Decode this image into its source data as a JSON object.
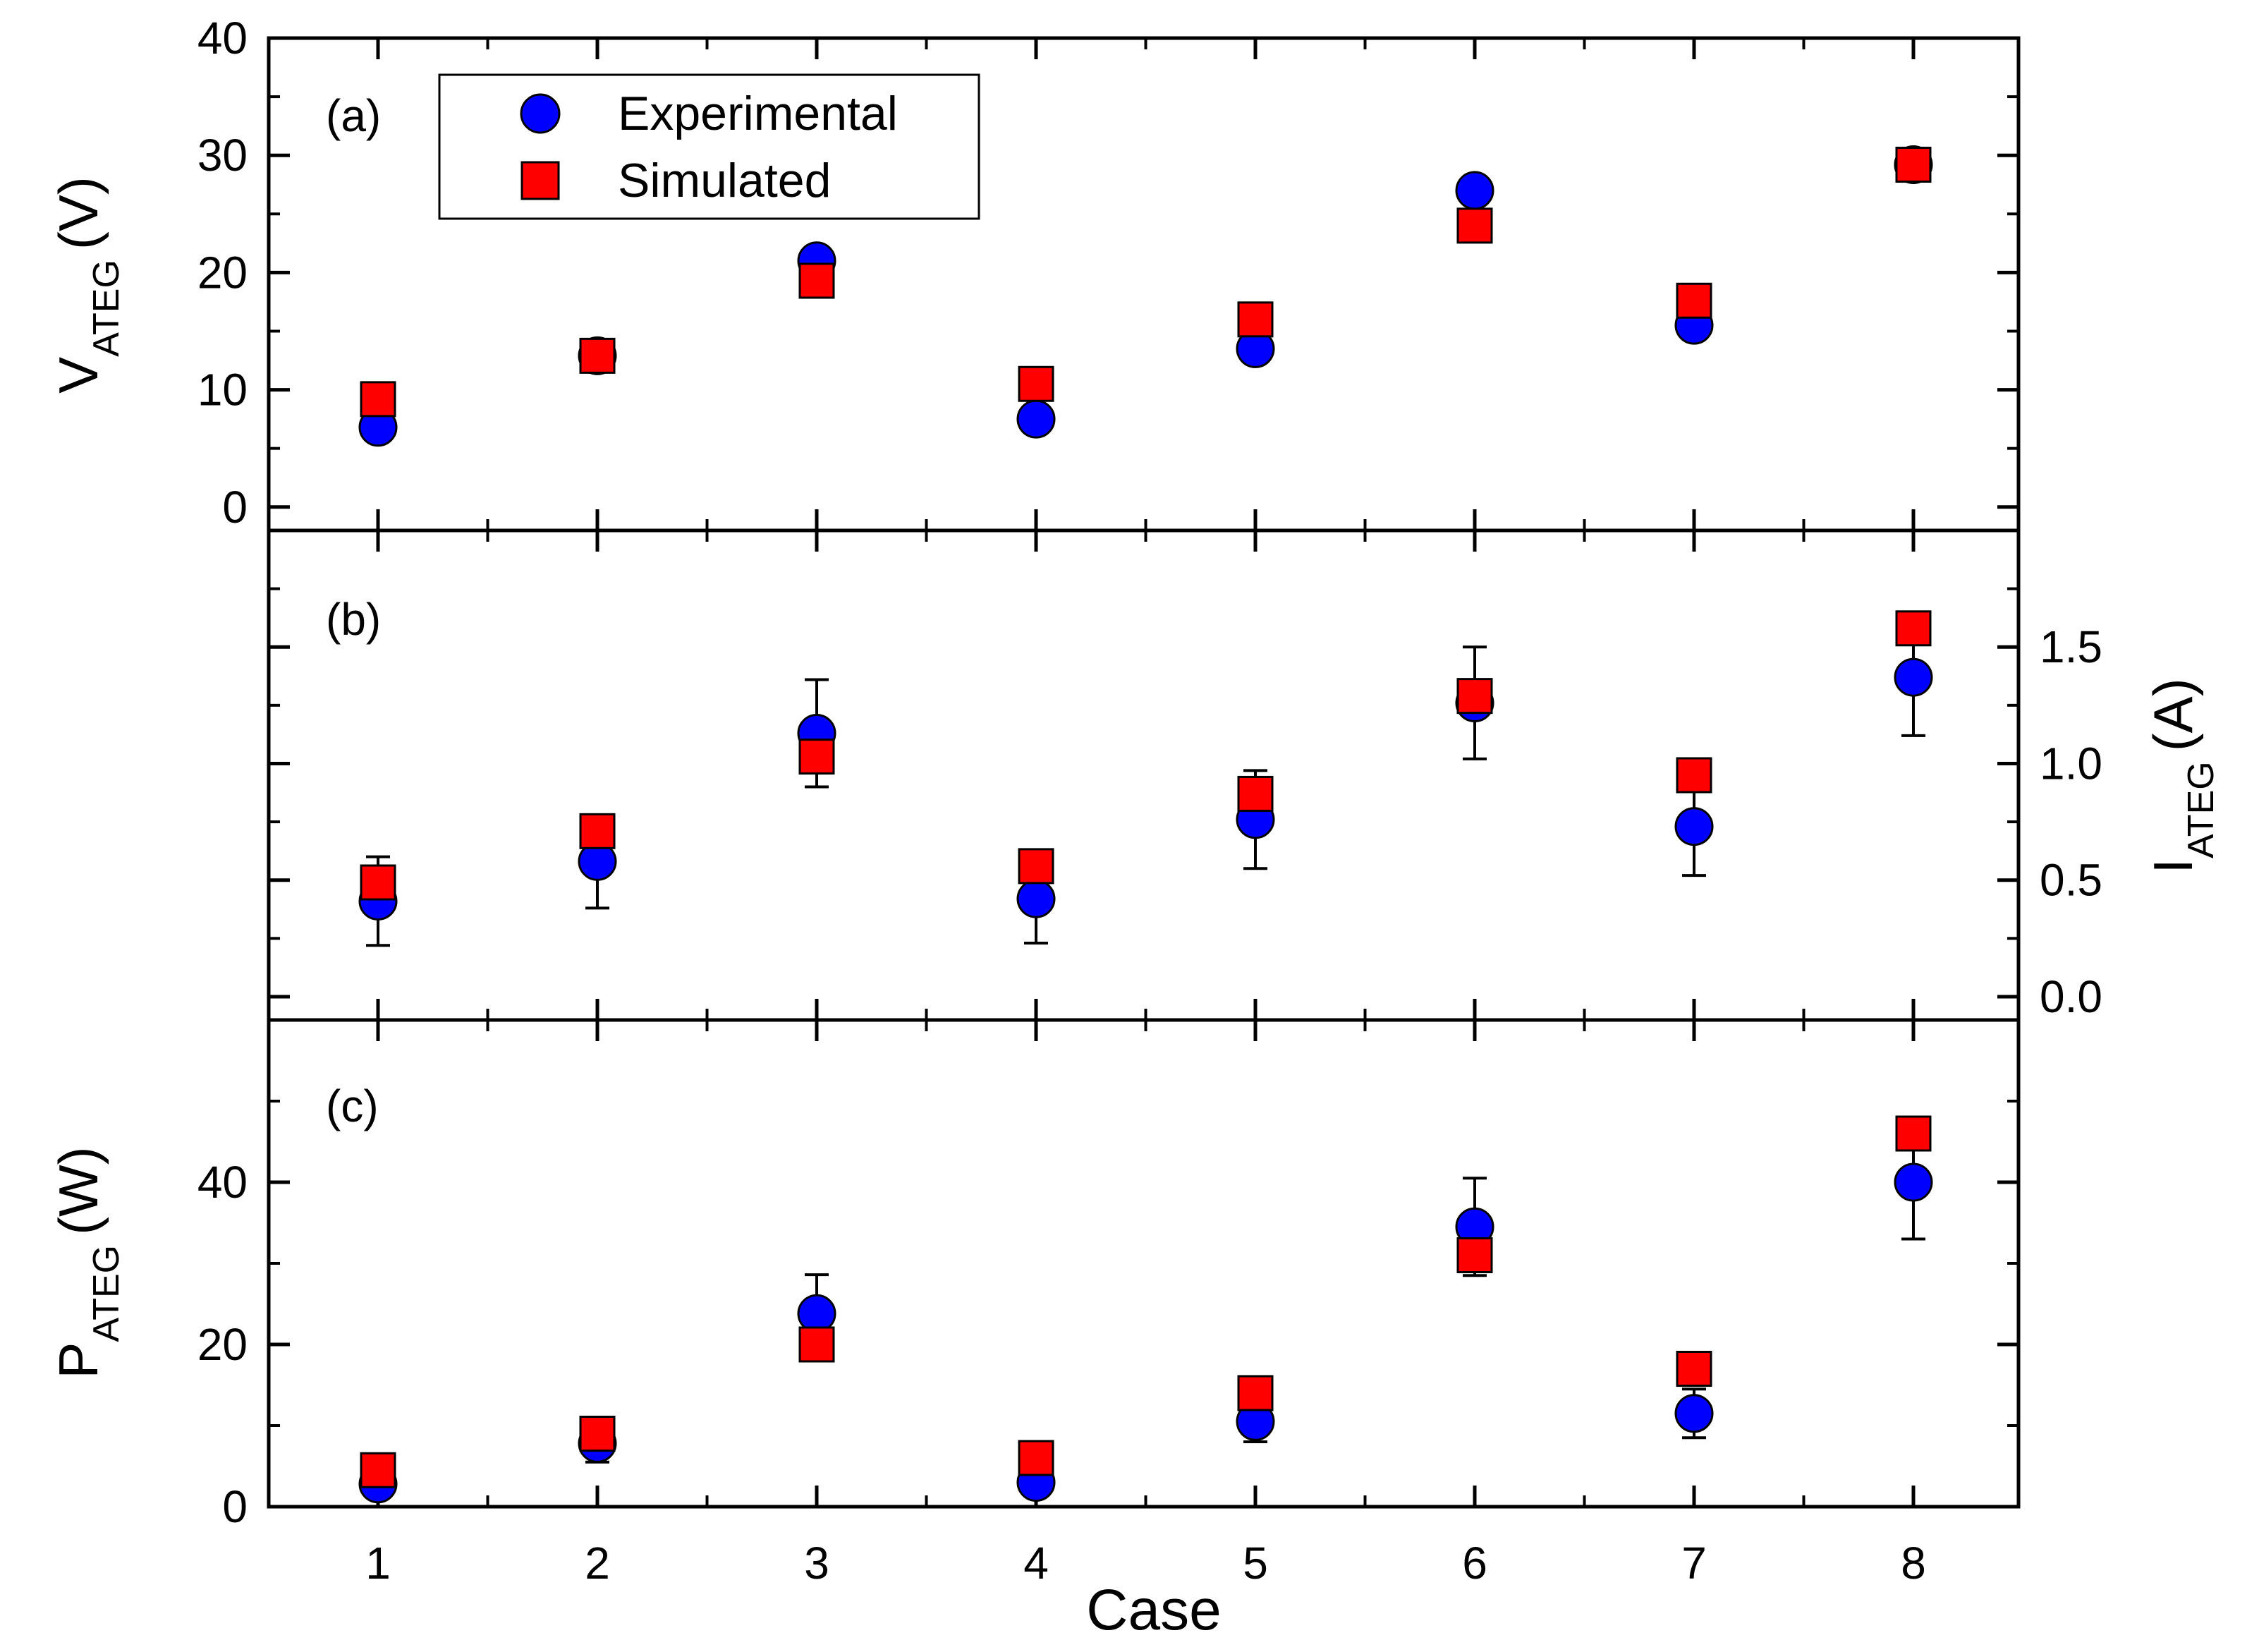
{
  "chart_data": {
    "type": "scatter",
    "x": [
      1,
      2,
      3,
      4,
      5,
      6,
      7,
      8
    ],
    "xlabel": "Case",
    "xticks": [
      "1",
      "2",
      "3",
      "4",
      "5",
      "6",
      "7",
      "8"
    ],
    "legend": {
      "placement": "top-left",
      "entries": [
        {
          "name": "Experimental",
          "marker": "circle",
          "color": "#0000ff"
        },
        {
          "name": "Simulated",
          "marker": "square",
          "color": "#ff0000"
        }
      ]
    },
    "panels": [
      {
        "tag": "(a)",
        "ylabel_main": "V",
        "ylabel_sub": "ATEG",
        "ylabel_unit": "(V)",
        "axis_side": "left",
        "ylim": [
          -2,
          40
        ],
        "yticks": [
          0,
          10,
          20,
          30,
          40
        ],
        "ytick_labels": [
          "0",
          "10",
          "20",
          "30",
          "40"
        ],
        "series": [
          {
            "name": "Experimental",
            "values": [
              6.8,
              12.9,
              21.0,
              7.5,
              13.5,
              27.0,
              15.5,
              29.2
            ],
            "error": [
              0.8,
              0.8,
              0.8,
              0.8,
              0.8,
              0.8,
              0.8,
              0.8
            ]
          },
          {
            "name": "Simulated",
            "values": [
              9.2,
              12.9,
              19.3,
              10.5,
              16.0,
              24.0,
              17.6,
              29.2
            ]
          }
        ]
      },
      {
        "tag": "(b)",
        "ylabel_main": "I",
        "ylabel_sub": "ATEG",
        "ylabel_unit": "(A)",
        "axis_side": "right",
        "ylim": [
          -0.1,
          2.0
        ],
        "yticks": [
          0.0,
          0.5,
          1.0,
          1.5
        ],
        "ytick_labels": [
          "0.0",
          "0.5",
          "1.0",
          "1.5"
        ],
        "series": [
          {
            "name": "Experimental",
            "values": [
              0.41,
              0.58,
              1.13,
              0.42,
              0.76,
              1.26,
              0.73,
              1.37
            ],
            "error": [
              0.19,
              0.2,
              0.23,
              0.19,
              0.21,
              0.24,
              0.21,
              0.25
            ]
          },
          {
            "name": "Simulated",
            "values": [
              0.49,
              0.71,
              1.03,
              0.56,
              0.87,
              1.29,
              0.95,
              1.58
            ]
          }
        ]
      },
      {
        "tag": "(c)",
        "ylabel_main": "P",
        "ylabel_sub": "ATEG",
        "ylabel_unit": "(W)",
        "axis_side": "left",
        "ylim": [
          0,
          60
        ],
        "yticks": [
          0,
          20,
          40
        ],
        "ytick_labels": [
          "0",
          "20",
          "40"
        ],
        "series": [
          {
            "name": "Experimental",
            "values": [
              2.8,
              7.8,
              23.8,
              3.0,
              10.5,
              34.5,
              11.5,
              40.0
            ],
            "error": [
              1.0,
              2.3,
              4.8,
              1.2,
              2.5,
              6.0,
              3.0,
              7.0
            ]
          },
          {
            "name": "Simulated",
            "values": [
              4.5,
              9.0,
              20.0,
              6.0,
              14.0,
              31.0,
              17.0,
              46.0
            ]
          }
        ]
      }
    ]
  }
}
